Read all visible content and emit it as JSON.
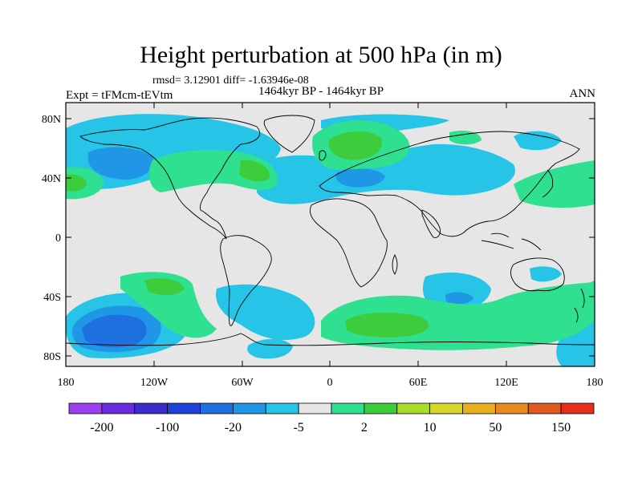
{
  "title": "Height perturbation at 500 hPa (in m)",
  "stats": "rmsd= 3.12901 diff= -1.63946e-08",
  "period": "1464kyr BP - 1464kyr BP",
  "experiment": "Expt = tFMcm-tEVtm",
  "season": "ANN",
  "map": {
    "lat_labels": [
      "80N",
      "40N",
      "0",
      "40S",
      "80S"
    ],
    "lon_labels": [
      "180",
      "120W",
      "60W",
      "0",
      "60E",
      "120E",
      "180"
    ],
    "background_color": "#e6e6e6"
  },
  "colorbar": {
    "colors": [
      "#9b3ff0",
      "#6a2ee0",
      "#3d2ccc",
      "#1f43d8",
      "#1e6fe0",
      "#1f97e6",
      "#26c4e6",
      "#e6e6e6",
      "#2ee08f",
      "#3ccc3c",
      "#a8dc2a",
      "#d6d62a",
      "#e8b01f",
      "#e88a1f",
      "#e05a1f",
      "#e62e1f"
    ],
    "labels": [
      "-200",
      "-100",
      "-20",
      "-5",
      "2",
      "10",
      "50",
      "150"
    ]
  }
}
